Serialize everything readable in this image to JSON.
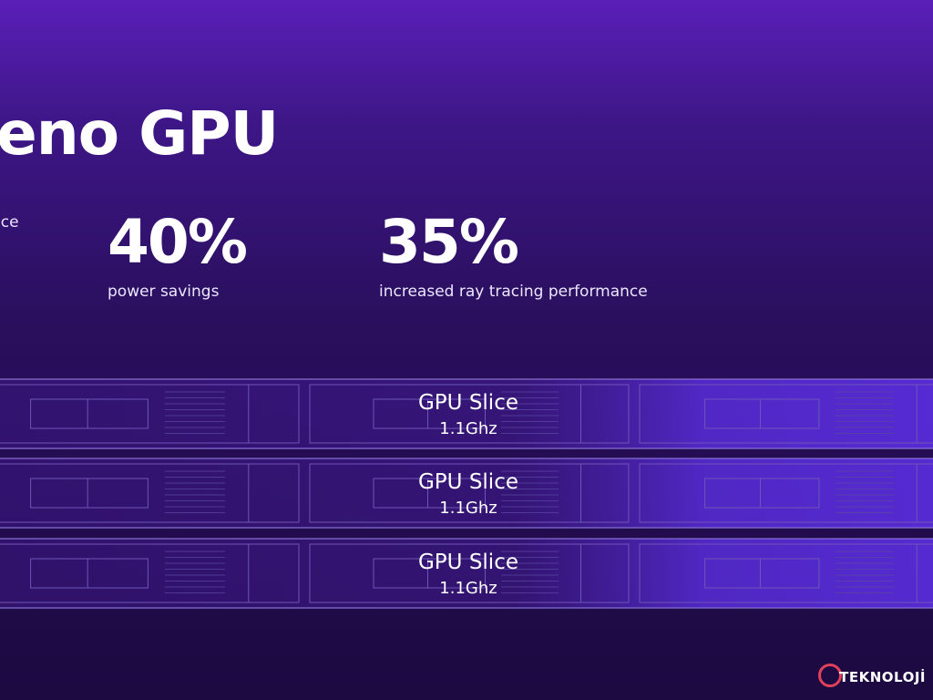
{
  "header": {
    "title": "eno GPU"
  },
  "stats": [
    {
      "value": "",
      "label": "nce"
    },
    {
      "value": "40%",
      "label": "power savings"
    },
    {
      "value": "35%",
      "label": "increased ray tracing performance"
    }
  ],
  "slices": [
    {
      "name": "GPU Slice",
      "clock": "1.1Ghz"
    },
    {
      "name": "GPU Slice",
      "clock": "1.1Ghz"
    },
    {
      "name": "GPU Slice",
      "clock": "1.1Ghz"
    }
  ],
  "watermark": "TEKNOLOJİ"
}
